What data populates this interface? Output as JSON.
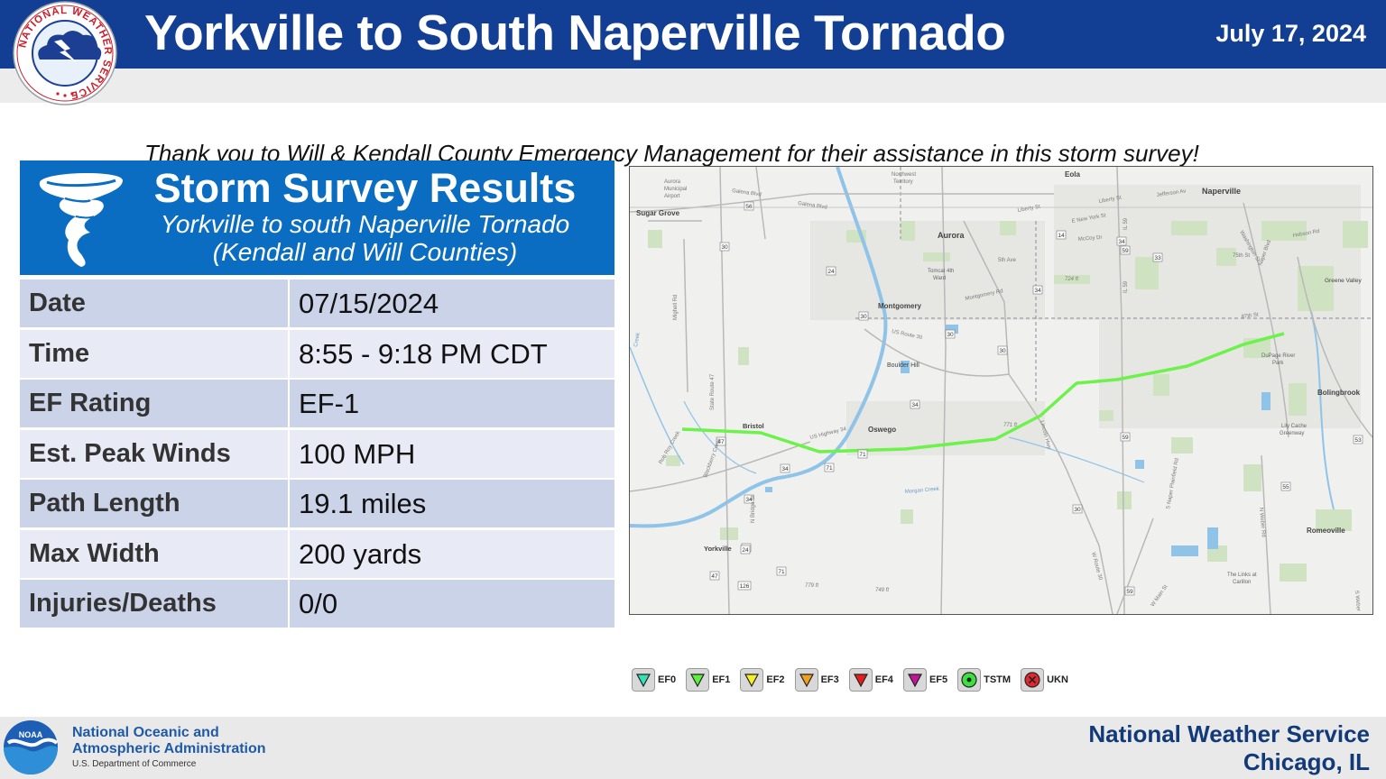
{
  "header": {
    "title": "Yorkville to South Naperville Tornado",
    "date": "July 17, 2024",
    "thanks": "Thank you to Will & Kendall County Emergency Management for their assistance in this storm survey!",
    "logo_text": "NATIONAL WEATHER SERVICE"
  },
  "panel": {
    "title": "Storm Survey Results",
    "subtitle_line1": "Yorkville to south Naperville Tornado",
    "subtitle_line2": "(Kendall and Will Counties)",
    "rows": [
      {
        "label": "Date",
        "value": "07/15/2024"
      },
      {
        "label": "Time",
        "value": "8:55 - 9:18 PM CDT"
      },
      {
        "label": "EF Rating",
        "value": "EF-1"
      },
      {
        "label": "Est. Peak Winds",
        "value": "100 MPH"
      },
      {
        "label": "Path Length",
        "value": "19.1 miles"
      },
      {
        "label": "Max Width",
        "value": "200 yards"
      },
      {
        "label": "Injuries/Deaths",
        "value": "0/0"
      }
    ]
  },
  "map": {
    "places": {
      "sugar_grove": "Sugar Grove",
      "aurora_airport_1": "Aurora",
      "aurora_airport_2": "Municipal",
      "aurora_airport_3": "Airport",
      "northwest_territory_1": "Northwest",
      "northwest_territory_2": "Territory",
      "eola": "Eola",
      "naperville": "Naperville",
      "aurora": "Aurora",
      "tomcat_1": "Tomcat 4th",
      "tomcat_2": "Ward",
      "montgomery": "Montgomery",
      "boulder_hill": "Boulder Hill",
      "bristol": "Bristol",
      "oswego": "Oswego",
      "bolingbrook": "Bolingbrook",
      "greene_valley": "Greene Valley",
      "dupage_river_park_1": "DuPage River",
      "dupage_river_park_2": "Park",
      "lily_cache_1": "Lily Cache",
      "lily_cache_2": "Greenway",
      "yorkville": "Yorkville",
      "romeoville": "Romeoville",
      "links_1": "The Links at",
      "links_2": "Carillon"
    },
    "roads": {
      "galena_blvd": "Galena Blvd",
      "galena_blvd_2": "Galena Blvd",
      "liberty_st": "Liberty St",
      "jefferson_av": "Jefferson Av",
      "liberty_st_2": "Liberty St",
      "new_york_st": "E New York St",
      "mccoy_dr": "McCoy Dr",
      "fifth_ave": "5th Ave",
      "montgomery_rd": "Montgomery Rd",
      "us_route_30": "US Route 30",
      "us_highway_34": "US Highway 34",
      "lincoln_hwy": "Lincoln Hwy",
      "w_route_30": "W Route 30",
      "state_route_47": "State Route 47",
      "mighell_rd": "Mighell Rd",
      "rob_roy_creek": "Rob Roy Creek",
      "blackberry_creek": "Blackberry Creek",
      "n_bridge_st": "N Bridge St",
      "morgan_creek": "Morgan Creek",
      "il_59": "IL 59",
      "il_59_2": "IL 59",
      "washington_st": "Washington St",
      "naper_blvd": "Naper Blvd",
      "hobson_rd": "Hobson Rd",
      "seventyfifth_st": "75th St",
      "eightyseventh_st": "87th St",
      "s_naper_plainfield_rd": "S Naper Plainfield Rd",
      "n_weber_rd": "N Weber Rd",
      "w_main_st": "W Main St",
      "s_weber": "S Weber",
      "creek_left": "Creek",
      "elev_724": "724 ft",
      "elev_771": "771 ft",
      "elev_779": "779 ft",
      "elev_749": "749 ft"
    },
    "shields": {
      "s56": "56",
      "s30a": "30",
      "s24": "24",
      "s14": "14",
      "s34a": "34",
      "s33": "33",
      "s34b": "34",
      "s30b": "30",
      "s30c": "30",
      "s30d": "30",
      "s34c": "34",
      "s47a": "47",
      "s34d": "34",
      "s71a": "71",
      "s71b": "71",
      "s34e": "34",
      "s34f": "34",
      "s59a": "59",
      "s53a": "53",
      "s55": "55",
      "s30e": "30",
      "s59b": "59",
      "s24b": "24",
      "s47b": "47",
      "s71c": "71",
      "s126": "126",
      "s59c": "59"
    },
    "track_color": "#6cf24a"
  },
  "legend": {
    "items": [
      {
        "label": "EF0",
        "color": "#34e0b4",
        "shape": "triangle-down"
      },
      {
        "label": "EF1",
        "color": "#5ef03c",
        "shape": "triangle-down"
      },
      {
        "label": "EF2",
        "color": "#f5ee2a",
        "shape": "triangle-down"
      },
      {
        "label": "EF3",
        "color": "#f0a020",
        "shape": "triangle-down"
      },
      {
        "label": "EF4",
        "color": "#e81c1c",
        "shape": "triangle-down"
      },
      {
        "label": "EF5",
        "color": "#c0169a",
        "shape": "triangle-down"
      },
      {
        "label": "TSTM",
        "color": "#3ce040",
        "shape": "dot-circle"
      },
      {
        "label": "UKN",
        "color": "#e0282e",
        "shape": "x-circle"
      }
    ]
  },
  "footer": {
    "noaa_line1": "National Oceanic and",
    "noaa_line2": "Atmospheric Administration",
    "noaa_dept": "U.S. Department of Commerce",
    "noaa_logo_text": "NOAA",
    "nws_line1": "National Weather Service",
    "nws_line2": "Chicago, IL"
  }
}
